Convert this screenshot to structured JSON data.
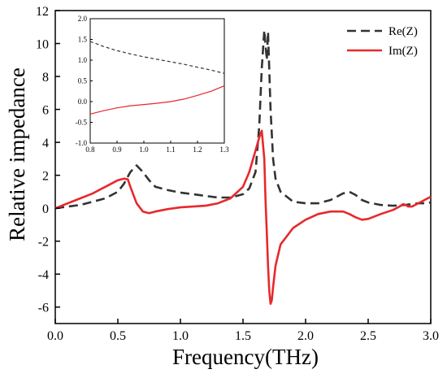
{
  "chart_data": [
    {
      "type": "line",
      "title": "",
      "xlabel": "Frequency(THz)",
      "ylabel": "Relative impedance",
      "xlim": [
        0,
        3.0
      ],
      "ylim": [
        -7,
        12
      ],
      "xticks": [
        0.0,
        0.5,
        1.0,
        1.5,
        2.0,
        2.5,
        3.0
      ],
      "xtick_labels": [
        "0.0",
        "0.5",
        "1.0",
        "1.5",
        "2.0",
        "2.5",
        "3.0"
      ],
      "yticks": [
        -6,
        -4,
        -2,
        0,
        2,
        4,
        6,
        8,
        10,
        12
      ],
      "ytick_labels": [
        "-6",
        "-4",
        "-2",
        "0",
        "2",
        "4",
        "6",
        "8",
        "10",
        "12"
      ],
      "grid": false,
      "legend_position": "top-right",
      "series": [
        {
          "name": "Re(Z)",
          "color": "#333333",
          "dash": "dashed",
          "x": [
            0,
            0.1,
            0.2,
            0.3,
            0.4,
            0.5,
            0.55,
            0.6,
            0.65,
            0.7,
            0.75,
            0.8,
            0.9,
            1.0,
            1.1,
            1.2,
            1.3,
            1.4,
            1.5,
            1.55,
            1.6,
            1.63,
            1.65,
            1.67,
            1.69,
            1.7,
            1.72,
            1.74,
            1.76,
            1.8,
            1.9,
            2.0,
            2.1,
            2.2,
            2.3,
            2.35,
            2.4,
            2.45,
            2.5,
            2.6,
            2.7,
            2.8,
            2.85,
            2.9,
            2.95,
            3.0
          ],
          "y": [
            0,
            0.1,
            0.2,
            0.4,
            0.6,
            1.0,
            1.5,
            2.2,
            2.6,
            2.2,
            1.7,
            1.3,
            1.1,
            0.95,
            0.85,
            0.75,
            0.65,
            0.65,
            0.85,
            1.2,
            2.2,
            5.0,
            8.5,
            10.8,
            9.0,
            10.7,
            6.0,
            3.0,
            1.8,
            1.0,
            0.4,
            0.3,
            0.3,
            0.5,
            0.9,
            1.0,
            0.8,
            0.5,
            0.35,
            0.2,
            0.15,
            0.2,
            0.25,
            0.3,
            0.3,
            0.35
          ]
        },
        {
          "name": "Im(Z)",
          "color": "#e8282b",
          "dash": "solid",
          "x": [
            0,
            0.1,
            0.2,
            0.3,
            0.4,
            0.5,
            0.55,
            0.58,
            0.6,
            0.65,
            0.7,
            0.75,
            0.8,
            0.9,
            1.0,
            1.1,
            1.2,
            1.3,
            1.4,
            1.5,
            1.55,
            1.6,
            1.63,
            1.65,
            1.67,
            1.68,
            1.69,
            1.7,
            1.71,
            1.72,
            1.73,
            1.74,
            1.76,
            1.8,
            1.9,
            2.0,
            2.1,
            2.2,
            2.3,
            2.35,
            2.4,
            2.45,
            2.5,
            2.6,
            2.7,
            2.75,
            2.78,
            2.8,
            2.82,
            2.85,
            2.9,
            3.0
          ],
          "y": [
            0,
            0.3,
            0.6,
            0.9,
            1.3,
            1.7,
            1.8,
            1.75,
            1.3,
            0.3,
            -0.2,
            -0.3,
            -0.2,
            -0.05,
            0.05,
            0.1,
            0.15,
            0.3,
            0.6,
            1.3,
            2.2,
            3.5,
            4.3,
            4.7,
            3.0,
            0.5,
            -1.5,
            -3.5,
            -5.0,
            -5.8,
            -5.6,
            -4.8,
            -3.5,
            -2.2,
            -1.2,
            -0.7,
            -0.35,
            -0.2,
            -0.2,
            -0.35,
            -0.55,
            -0.7,
            -0.65,
            -0.35,
            -0.1,
            0.1,
            0.25,
            0.2,
            0.1,
            0.1,
            0.3,
            0.7
          ]
        }
      ]
    },
    {
      "type": "line",
      "title": "",
      "xlabel": "",
      "ylabel": "",
      "xlim": [
        0.8,
        1.3
      ],
      "ylim": [
        -1.0,
        2.0
      ],
      "xticks": [
        0.8,
        0.9,
        1.0,
        1.1,
        1.2,
        1.3
      ],
      "xtick_labels": [
        "0.8",
        "0.9",
        "1.0",
        "1.1",
        "1.2",
        "1.3"
      ],
      "yticks": [
        -1.0,
        -0.5,
        0.0,
        0.5,
        1.0,
        1.5,
        2.0
      ],
      "ytick_labels": [
        "-1.0",
        "-0.5",
        "0.0",
        "0.5",
        "1.0",
        "1.5",
        "2.0"
      ],
      "grid": false,
      "series": [
        {
          "color": "#333333",
          "dash": "dashed",
          "x": [
            0.8,
            0.85,
            0.9,
            0.95,
            1.0,
            1.05,
            1.1,
            1.15,
            1.2,
            1.25,
            1.3
          ],
          "y": [
            1.45,
            1.33,
            1.23,
            1.15,
            1.08,
            1.02,
            0.96,
            0.9,
            0.83,
            0.76,
            0.68
          ]
        },
        {
          "color": "#e8282b",
          "dash": "solid",
          "x": [
            0.8,
            0.85,
            0.9,
            0.95,
            1.0,
            1.05,
            1.1,
            1.15,
            1.2,
            1.25,
            1.3
          ],
          "y": [
            -0.3,
            -0.22,
            -0.15,
            -0.1,
            -0.07,
            -0.04,
            0.0,
            0.06,
            0.15,
            0.25,
            0.38
          ]
        }
      ]
    }
  ]
}
